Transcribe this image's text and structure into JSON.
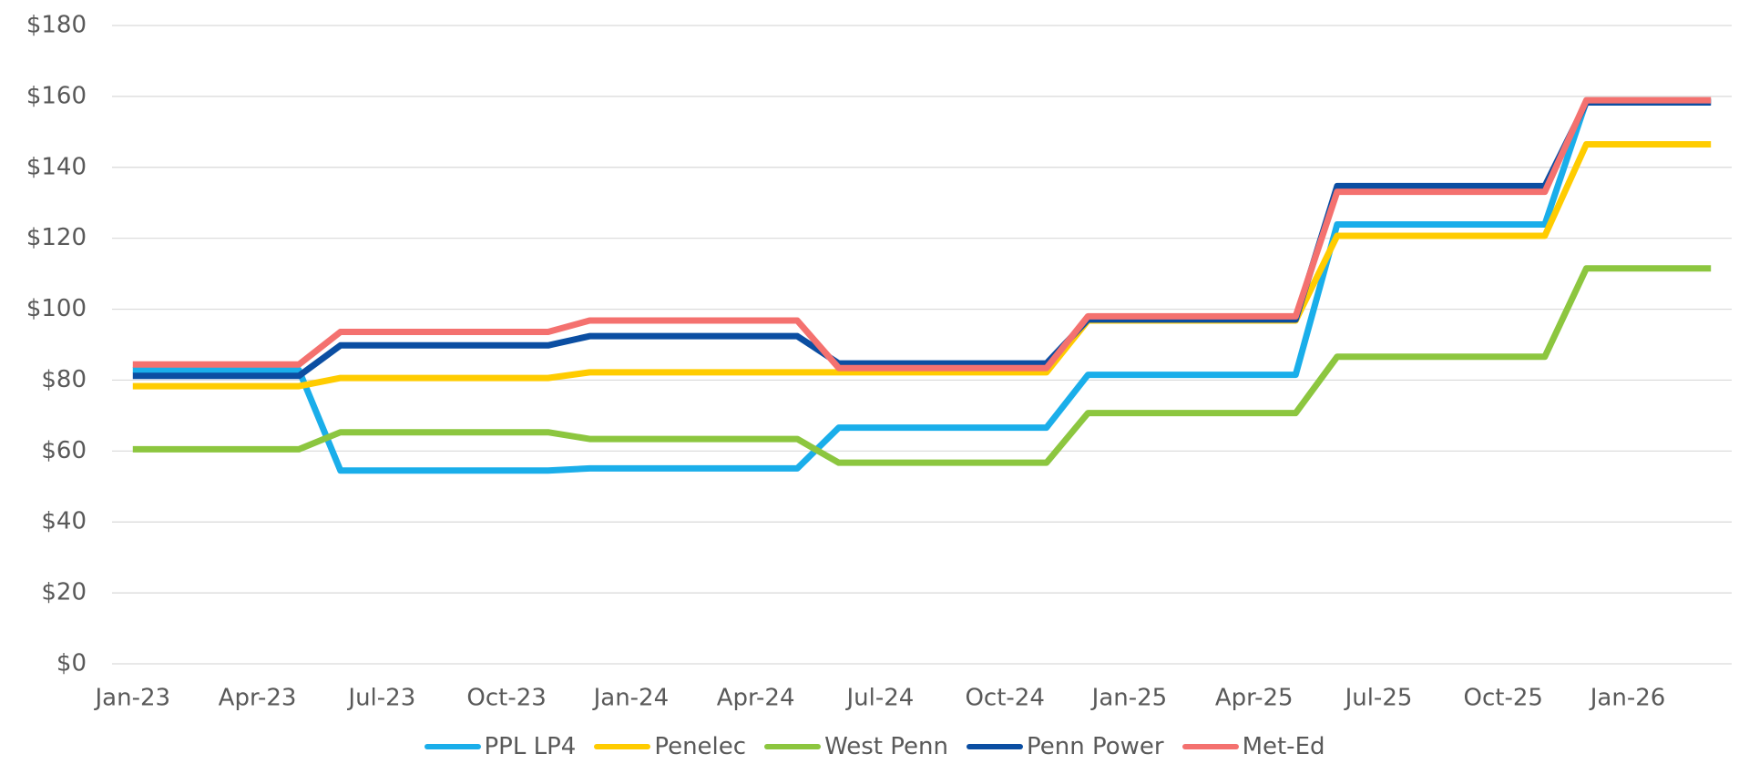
{
  "chart_data": {
    "type": "line",
    "categories": [
      "Jan-23",
      null,
      null,
      "Apr-23",
      null,
      null,
      "Jul-23",
      null,
      null,
      "Oct-23",
      null,
      null,
      "Jan-24",
      null,
      null,
      "Apr-24",
      null,
      null,
      "Jul-24",
      null,
      null,
      "Oct-24",
      null,
      null,
      "Jan-25",
      null,
      null,
      "Apr-25",
      null,
      null,
      "Jul-25",
      null,
      null,
      "Oct-25",
      null,
      null,
      "Jan-26",
      null,
      null
    ],
    "series": [
      {
        "name": "PPL LP4",
        "color": "#1aaeea",
        "values": [
          82.8,
          82.8,
          82.8,
          82.8,
          82.8,
          54.5,
          54.5,
          54.5,
          54.5,
          54.5,
          54.5,
          55.1,
          55.1,
          55.1,
          55.1,
          55.1,
          55.1,
          66.6,
          66.6,
          66.6,
          66.6,
          66.6,
          66.6,
          81.5,
          81.5,
          81.5,
          81.5,
          81.5,
          81.5,
          123.9,
          123.9,
          123.9,
          123.9,
          123.9,
          123.9,
          158.6,
          158.6,
          158.6,
          158.6
        ]
      },
      {
        "name": "Penelec",
        "color": "#ffcc00",
        "values": [
          78.3,
          78.3,
          78.3,
          78.3,
          78.3,
          80.6,
          80.6,
          80.6,
          80.6,
          80.6,
          80.6,
          82.2,
          82.2,
          82.2,
          82.2,
          82.2,
          82.2,
          82.2,
          82.2,
          82.2,
          82.2,
          82.2,
          82.2,
          96.8,
          96.8,
          96.8,
          96.8,
          96.8,
          96.8,
          120.7,
          120.7,
          120.7,
          120.7,
          120.7,
          120.7,
          146.5,
          146.5,
          146.5,
          146.5
        ]
      },
      {
        "name": "West Penn",
        "color": "#8cc63f",
        "values": [
          60.5,
          60.5,
          60.5,
          60.5,
          60.5,
          65.3,
          65.3,
          65.3,
          65.3,
          65.3,
          65.3,
          63.4,
          63.4,
          63.4,
          63.4,
          63.4,
          63.4,
          56.7,
          56.7,
          56.7,
          56.7,
          56.7,
          56.7,
          70.7,
          70.7,
          70.7,
          70.7,
          70.7,
          70.7,
          86.6,
          86.6,
          86.6,
          86.6,
          86.6,
          86.6,
          111.5,
          111.5,
          111.5,
          111.5
        ]
      },
      {
        "name": "Penn Power",
        "color": "#0b4ea2",
        "values": [
          81.2,
          81.2,
          81.2,
          81.2,
          81.2,
          89.8,
          89.8,
          89.8,
          89.8,
          89.8,
          89.8,
          92.4,
          92.4,
          92.4,
          92.4,
          92.4,
          92.4,
          84.7,
          84.7,
          84.7,
          84.7,
          84.7,
          84.7,
          97.1,
          97.1,
          97.1,
          97.1,
          97.1,
          97.1,
          134.7,
          134.7,
          134.7,
          134.7,
          134.7,
          134.7,
          158.3,
          158.3,
          158.3,
          158.3
        ]
      },
      {
        "name": "Met-Ed",
        "color": "#f4716f",
        "values": [
          84.4,
          84.4,
          84.4,
          84.4,
          84.4,
          93.6,
          93.6,
          93.6,
          93.6,
          93.6,
          93.6,
          96.8,
          96.8,
          96.8,
          96.8,
          96.8,
          96.8,
          83.4,
          83.4,
          83.4,
          83.4,
          83.4,
          83.4,
          98.0,
          98.0,
          98.0,
          98.0,
          98.0,
          98.0,
          133.1,
          133.1,
          133.1,
          133.1,
          133.1,
          133.1,
          158.9,
          158.9,
          158.9,
          158.9
        ]
      }
    ],
    "ylim": [
      0,
      180
    ],
    "yticks": [
      {
        "value": 0,
        "label": "$0"
      },
      {
        "value": 20,
        "label": "$20"
      },
      {
        "value": 40,
        "label": "$40"
      },
      {
        "value": 60,
        "label": "$60"
      },
      {
        "value": 80,
        "label": "$80"
      },
      {
        "value": 100,
        "label": "$100"
      },
      {
        "value": 120,
        "label": "$120"
      },
      {
        "value": 140,
        "label": "$140"
      },
      {
        "value": 160,
        "label": "$160"
      },
      {
        "value": 180,
        "label": "$180"
      }
    ],
    "grid": true,
    "legend": "bottom"
  }
}
